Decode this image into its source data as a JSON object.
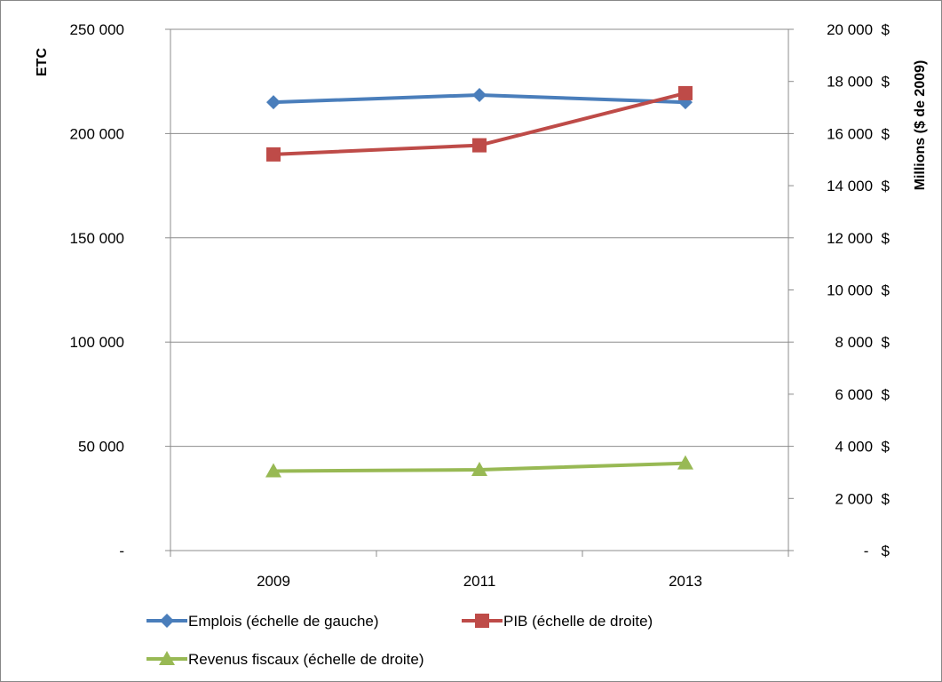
{
  "chart_data": {
    "type": "line",
    "categories": [
      "2009",
      "2011",
      "2013"
    ],
    "y_left": {
      "label": "ETC",
      "range": [
        0,
        250000
      ],
      "ticks": [
        0,
        50000,
        100000,
        150000,
        200000,
        250000
      ],
      "tick_labels": [
        "-",
        "50 000",
        "100 000",
        "150 000",
        "200 000",
        "250 000"
      ]
    },
    "y_right": {
      "label": "Millions ($ de 2009)",
      "range": [
        0,
        20000
      ],
      "ticks": [
        0,
        2000,
        4000,
        6000,
        8000,
        10000,
        12000,
        14000,
        16000,
        18000,
        20000
      ],
      "tick_labels": [
        "-   $",
        "2 000  $",
        "4 000  $",
        "6 000  $",
        "8 000  $",
        "10 000  $",
        "12 000  $",
        "14 000  $",
        "16 000  $",
        "18 000  $",
        "20 000  $"
      ]
    },
    "series": [
      {
        "name": "Emplois (échelle de gauche)",
        "axis": "left",
        "color": "#4a7ebb",
        "marker": "diamond",
        "values": [
          215000,
          218500,
          215000
        ]
      },
      {
        "name": "PIB (échelle de droite)",
        "axis": "right",
        "color": "#be4b48",
        "marker": "square",
        "values": [
          15200,
          15550,
          17550
        ]
      },
      {
        "name": "Revenus fiscaux (échelle de droite)",
        "axis": "right",
        "color": "#98b954",
        "marker": "triangle",
        "values": [
          3050,
          3100,
          3350
        ]
      }
    ],
    "grid": "horizontal",
    "legend_position": "bottom"
  }
}
